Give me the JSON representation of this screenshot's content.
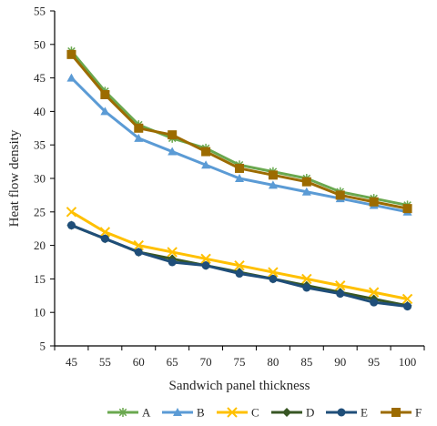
{
  "chart_data": {
    "type": "line",
    "title": "",
    "xlabel": "Sandwich panel thickness",
    "ylabel": "Heat flow density",
    "categories": [
      "45",
      "55",
      "60",
      "65",
      "70",
      "75",
      "80",
      "85",
      "90",
      "95",
      "100"
    ],
    "ylim": [
      5,
      55
    ],
    "yticks": [
      5,
      10,
      15,
      20,
      25,
      30,
      35,
      40,
      45,
      50,
      55
    ],
    "grid": false,
    "legend_position": "bottom",
    "series": [
      {
        "name": "A",
        "color": "#6aa84f",
        "marker": "star",
        "values": [
          49,
          43,
          38,
          36,
          34.5,
          32,
          31,
          30,
          28,
          27,
          26
        ]
      },
      {
        "name": "B",
        "color": "#5b9bd5",
        "marker": "triangle",
        "values": [
          45,
          40,
          36,
          34,
          32,
          30,
          29,
          28,
          27,
          26,
          25
        ]
      },
      {
        "name": "C",
        "color": "#ffc000",
        "marker": "x",
        "values": [
          25,
          22,
          20,
          19,
          18,
          17,
          16,
          15,
          14,
          13,
          12
        ]
      },
      {
        "name": "D",
        "color": "#375623",
        "marker": "diamond",
        "values": [
          23,
          21,
          19,
          18,
          17,
          16,
          15,
          14,
          13,
          12,
          11
        ]
      },
      {
        "name": "E",
        "color": "#1f4e79",
        "marker": "circle",
        "values": [
          23,
          21,
          19,
          17.5,
          17,
          15.8,
          15,
          13.7,
          12.8,
          11.5,
          10.9
        ]
      },
      {
        "name": "F",
        "color": "#9c6b00",
        "marker": "square",
        "values": [
          48.5,
          42.5,
          37.5,
          36.5,
          34,
          31.5,
          30.5,
          29.5,
          27.5,
          26.5,
          25.5
        ]
      }
    ]
  }
}
